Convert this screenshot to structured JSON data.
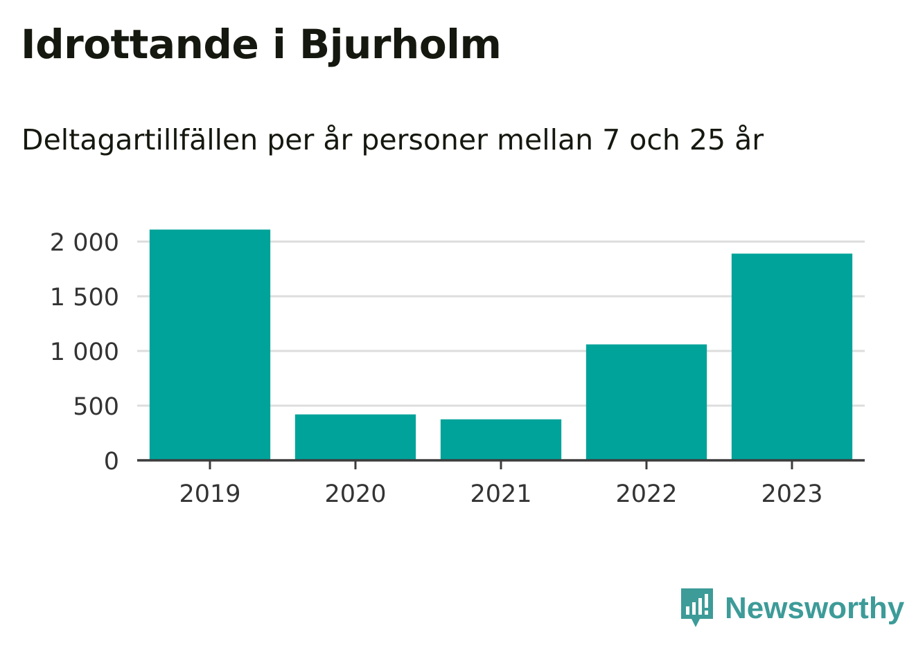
{
  "colors": {
    "bar": "#00a39a",
    "axis": "#3c3c3c",
    "grid": "#dddddd",
    "text": "#333333",
    "title": "#15180f",
    "brand": "#3d9b98"
  },
  "brand": {
    "name": "Newsworthy",
    "icon": "bar-chart-speech-bubble-icon"
  },
  "chart_data": {
    "type": "bar",
    "title": "Idrottande i Bjurholm",
    "subtitle": "Deltagartillfällen per år personer mellan 7 och 25 år",
    "categories": [
      "2019",
      "2020",
      "2021",
      "2022",
      "2023"
    ],
    "values": [
      2110,
      420,
      375,
      1060,
      1890
    ],
    "ylim": [
      0,
      2000
    ],
    "yticks": [
      0,
      500,
      1000,
      1500,
      2000
    ],
    "ytick_labels": [
      "0",
      "500",
      "1 000",
      "1 500",
      "2 000"
    ],
    "xlabel": "",
    "ylabel": "",
    "grid": true,
    "legend": "none"
  }
}
